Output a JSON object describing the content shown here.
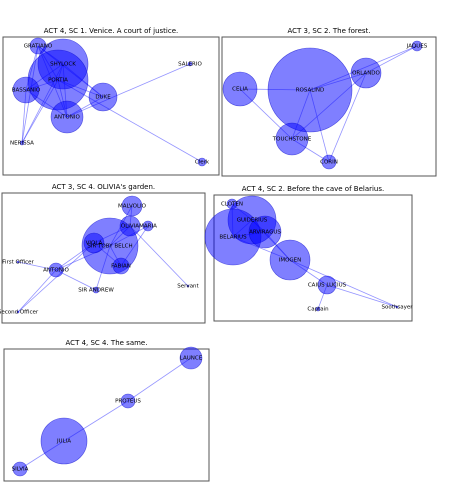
{
  "panels": [
    {
      "title": "ACT 4, SC 1. Venice. A court of justice.",
      "nodes": [
        "GRATIANO",
        "SHYLOCK",
        "PORTIA",
        "BASSANIO",
        "DUKE",
        "ANTONIO",
        "NERISSA",
        "SALERIO",
        "Clerk"
      ]
    },
    {
      "title": "ACT 3, SC 2. The forest.",
      "nodes": [
        "JAQUES",
        "ROSALIND",
        "ORLANDO",
        "CELIA",
        "TOUCHSTONE",
        "CORIN"
      ]
    },
    {
      "title": "ACT 3, SC 4. OLIVIA's garden.",
      "nodes": [
        "MALVOLIO",
        "OLIVIA",
        "MARIA",
        "SIR TOBY BELCH",
        "VIOLA",
        "FABIAN",
        "First Officer",
        "ANTONIO",
        "SIR ANDREW",
        "Servant",
        "Second Officer"
      ]
    },
    {
      "title": "ACT 4, SC 2. Before the cave of Belarius.",
      "nodes": [
        "CLOTEN",
        "GUIDERIUS",
        "BELARIUS",
        "ARVIRAGUS",
        "IMOGEN",
        "CAIUS LUCIUS",
        "Captain",
        "Soothsayer"
      ]
    },
    {
      "title": "ACT 4, SC 4. The same.",
      "nodes": [
        "LAUNCE",
        "PROTEUS",
        "JULIA",
        "SILVIA"
      ]
    }
  ]
}
